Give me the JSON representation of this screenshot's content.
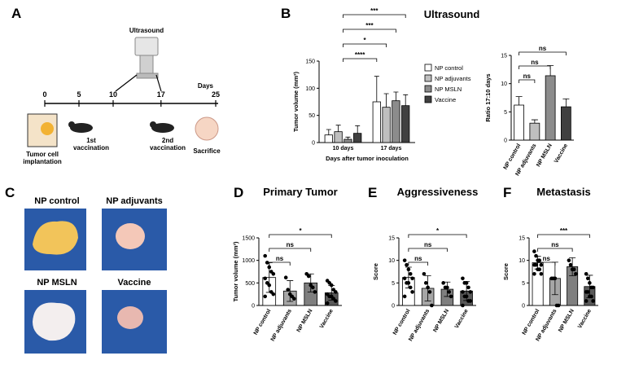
{
  "panel_labels": [
    "A",
    "B",
    "C",
    "D",
    "E",
    "F"
  ],
  "timeline": {
    "title": "Ultrasound",
    "axis_label": "Days",
    "days": [
      0,
      5,
      10,
      17,
      25
    ],
    "implantation": [
      "Tumor cell",
      "implantation"
    ],
    "vaccination_1": [
      "1st",
      "vaccination"
    ],
    "vaccination_2": [
      "2nd",
      "vaccination"
    ],
    "sacrifice": "Sacrifice"
  },
  "photos": {
    "labels": [
      "NP control",
      "NP adjuvants",
      "NP MSLN",
      "Vaccine"
    ]
  },
  "chart_data": [
    {
      "type": "bar",
      "title": "Ultrasound",
      "ylabel": "Tumor volume (mm³)",
      "xlabel": "Days after tumor inoculation",
      "categories": [
        "10 days",
        "17 days"
      ],
      "series": [
        {
          "name": "NP control",
          "color": "#ffffff",
          "values": [
            14,
            75
          ],
          "errors": [
            10,
            47
          ]
        },
        {
          "name": "NP adjuvants",
          "color": "#bfbfbf",
          "values": [
            20,
            65
          ],
          "errors": [
            12,
            25
          ]
        },
        {
          "name": "NP MSLN",
          "color": "#8c8c8c",
          "values": [
            6,
            77
          ],
          "errors": [
            4,
            16
          ]
        },
        {
          "name": "Vaccine",
          "color": "#404040",
          "values": [
            17,
            68
          ],
          "errors": [
            14,
            20
          ]
        }
      ],
      "ylim": [
        0,
        150
      ],
      "yticks": [
        0,
        50,
        100,
        150
      ],
      "annotations": [
        "****",
        "*",
        "***",
        "***"
      ]
    },
    {
      "type": "bar",
      "ylabel": "Ratio 17:10 days",
      "categories": [
        "NP control",
        "NP adjuvants",
        "NP MSLN",
        "Vaccine"
      ],
      "colors": [
        "#ffffff",
        "#bfbfbf",
        "#8c8c8c",
        "#404040"
      ],
      "values": [
        6.2,
        3.0,
        11.4,
        5.9
      ],
      "errors": [
        1.5,
        0.6,
        1.8,
        1.4
      ],
      "ylim": [
        0,
        15
      ],
      "yticks": [
        0,
        5,
        10,
        15
      ],
      "annotations": [
        "ns",
        "ns",
        "ns"
      ]
    },
    {
      "type": "bar",
      "title": "Primary Tumor",
      "ylabel": "Tumor volume (mm³)",
      "categories": [
        "NP control",
        "NP adjuvants",
        "NP MSLN",
        "Vaccine"
      ],
      "colors": [
        "#ffffff",
        "#a6a6a6",
        "#7f7f7f",
        "#595959"
      ],
      "values": [
        620,
        320,
        500,
        280
      ],
      "errors": [
        330,
        230,
        200,
        160
      ],
      "points": [
        [
          1100,
          950,
          850,
          750,
          700,
          600,
          500,
          450,
          300,
          250,
          200
        ],
        [
          620,
          350,
          250,
          200,
          150
        ],
        [
          700,
          650,
          450,
          400,
          300
        ],
        [
          550,
          500,
          450,
          350,
          300,
          250,
          200,
          200,
          150,
          100,
          50
        ]
      ],
      "ylim": [
        0,
        1500
      ],
      "yticks": [
        0,
        500,
        1000,
        1500
      ],
      "annotations": [
        "ns",
        "ns",
        "*"
      ]
    },
    {
      "type": "bar",
      "title": "Aggressiveness",
      "ylabel": "Score",
      "categories": [
        "NP control",
        "NP adjuvants",
        "NP MSLN",
        "Vaccine"
      ],
      "colors": [
        "#ffffff",
        "#a6a6a6",
        "#7f7f7f",
        "#595959"
      ],
      "values": [
        6.2,
        3.8,
        3.6,
        3.2
      ],
      "errors": [
        2.3,
        2.8,
        1.6,
        2.1
      ],
      "points": [
        [
          10,
          9,
          8,
          7,
          6,
          6,
          5,
          5,
          4,
          3,
          2
        ],
        [
          7,
          5,
          4,
          3,
          0
        ],
        [
          5,
          4,
          4,
          3,
          2
        ],
        [
          6,
          5,
          5,
          4,
          3,
          3,
          2,
          2,
          1,
          1,
          0
        ]
      ],
      "ylim": [
        0,
        15
      ],
      "yticks": [
        0,
        5,
        10,
        15
      ],
      "annotations": [
        "ns",
        "ns",
        "*"
      ]
    },
    {
      "type": "bar",
      "title": "Metastasis",
      "ylabel": "Score",
      "categories": [
        "NP control",
        "NP adjuvants",
        "NP MSLN",
        "Vaccine"
      ],
      "colors": [
        "#ffffff",
        "#a6a6a6",
        "#7f7f7f",
        "#595959"
      ],
      "values": [
        9.5,
        6.0,
        8.6,
        4.2
      ],
      "errors": [
        1.4,
        3.6,
        2.0,
        2.5
      ],
      "points": [
        [
          12,
          11,
          10,
          10,
          9,
          9,
          9,
          8,
          8,
          7,
          7
        ],
        [
          6,
          6,
          6,
          0,
          0
        ],
        [
          10,
          9,
          8,
          8,
          7
        ],
        [
          7,
          6,
          5,
          4,
          4,
          3,
          3,
          2,
          2,
          1,
          1
        ]
      ],
      "ylim": [
        0,
        15
      ],
      "yticks": [
        0,
        5,
        10,
        15
      ],
      "annotations": [
        "ns",
        "ns",
        "***"
      ]
    }
  ]
}
